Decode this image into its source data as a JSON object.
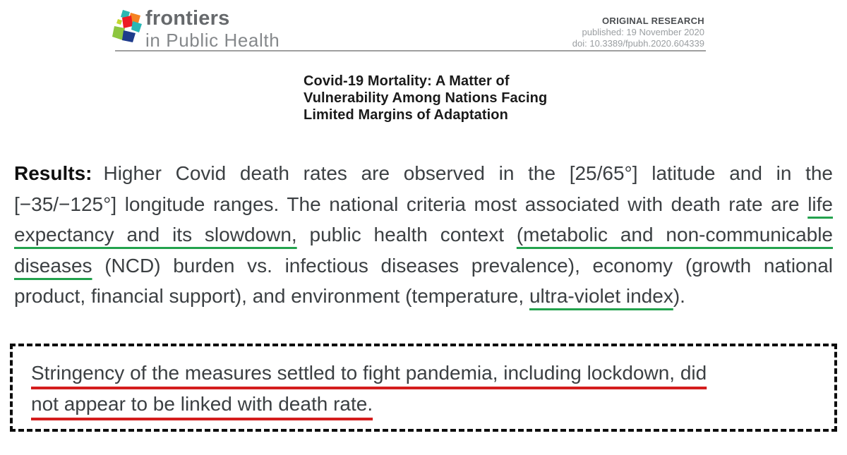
{
  "colors": {
    "green_underline": "#23a24d",
    "red_underline": "#d41d1d",
    "box_border": "#0d0d0d",
    "logo": [
      "#2bb7b3",
      "#f58220",
      "#ed1c24",
      "#29b7b5",
      "#8dc63f",
      "#1e3c8c",
      "#c4d82e"
    ]
  },
  "header": {
    "brand_line1": "frontiers",
    "brand_line2": "in Public Health",
    "article_type": "ORIGINAL RESEARCH",
    "published": "published: 19 November 2020",
    "doi": "doi: 10.3389/fpubh.2020.604339"
  },
  "title": {
    "lines": [
      "Covid-19 Mortality: A Matter of",
      "Vulnerability Among Nations Facing",
      "Limited Margins of Adaptation"
    ]
  },
  "results": {
    "segments": [
      {
        "text": "Results:",
        "style": "label"
      },
      {
        "text": "Higher Covid death rates are observed in the [25/65°] latitude and in the [−35/−125°] longitude ranges. The national criteria most associated with death rate are ",
        "style": "plain"
      },
      {
        "text": "life expectancy and its slowdown,",
        "style": "green"
      },
      {
        "text": " public health context ",
        "style": "plain"
      },
      {
        "text": "(metabolic and non-communicable diseases",
        "style": "green"
      },
      {
        "text": " (NCD) burden vs. infectious diseases prevalence), economy (growth national product, financial support), and environment (temperature, ",
        "style": "plain"
      },
      {
        "text": "ultra-violet index",
        "style": "green"
      },
      {
        "text": ").",
        "style": "plain"
      }
    ]
  },
  "highlight_box": {
    "lines": [
      "Stringency of the measures settled to fight pandemia, including lockdown, did",
      "not appear to be linked with death rate."
    ]
  }
}
